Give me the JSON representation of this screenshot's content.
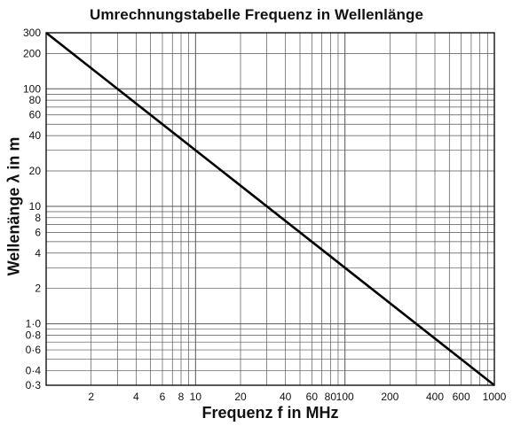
{
  "chart_data": {
    "type": "line",
    "title": "Umrechnungstabelle Frequenz in Wellenlänge",
    "xlabel": "Frequenz  f  in MHz",
    "ylabel": "Wellenänge  λ  in m",
    "x_scale": "log",
    "y_scale": "log",
    "xlim": [
      1,
      1000
    ],
    "ylim": [
      0.3,
      300
    ],
    "grid": true,
    "x_ticks": [
      2,
      4,
      6,
      8,
      10,
      20,
      40,
      60,
      80,
      100,
      200,
      400,
      600,
      1000
    ],
    "x_tick_labels": [
      "2",
      "4",
      "6",
      "8",
      "10",
      "20",
      "40",
      "60",
      "80",
      "100",
      "200",
      "400",
      "600",
      "1000"
    ],
    "y_ticks": [
      0.3,
      0.4,
      0.6,
      0.8,
      1,
      2,
      4,
      6,
      8,
      10,
      20,
      40,
      60,
      80,
      100,
      200,
      300
    ],
    "y_tick_labels": [
      "0·3",
      "0·4",
      "0·6",
      "0·8",
      "1·0",
      "2",
      "4",
      "6",
      "8",
      "10",
      "20",
      "40",
      "60",
      "80",
      "100",
      "200",
      "300"
    ],
    "series": [
      {
        "x": [
          1,
          1000
        ],
        "y": [
          300,
          0.3
        ]
      }
    ]
  }
}
